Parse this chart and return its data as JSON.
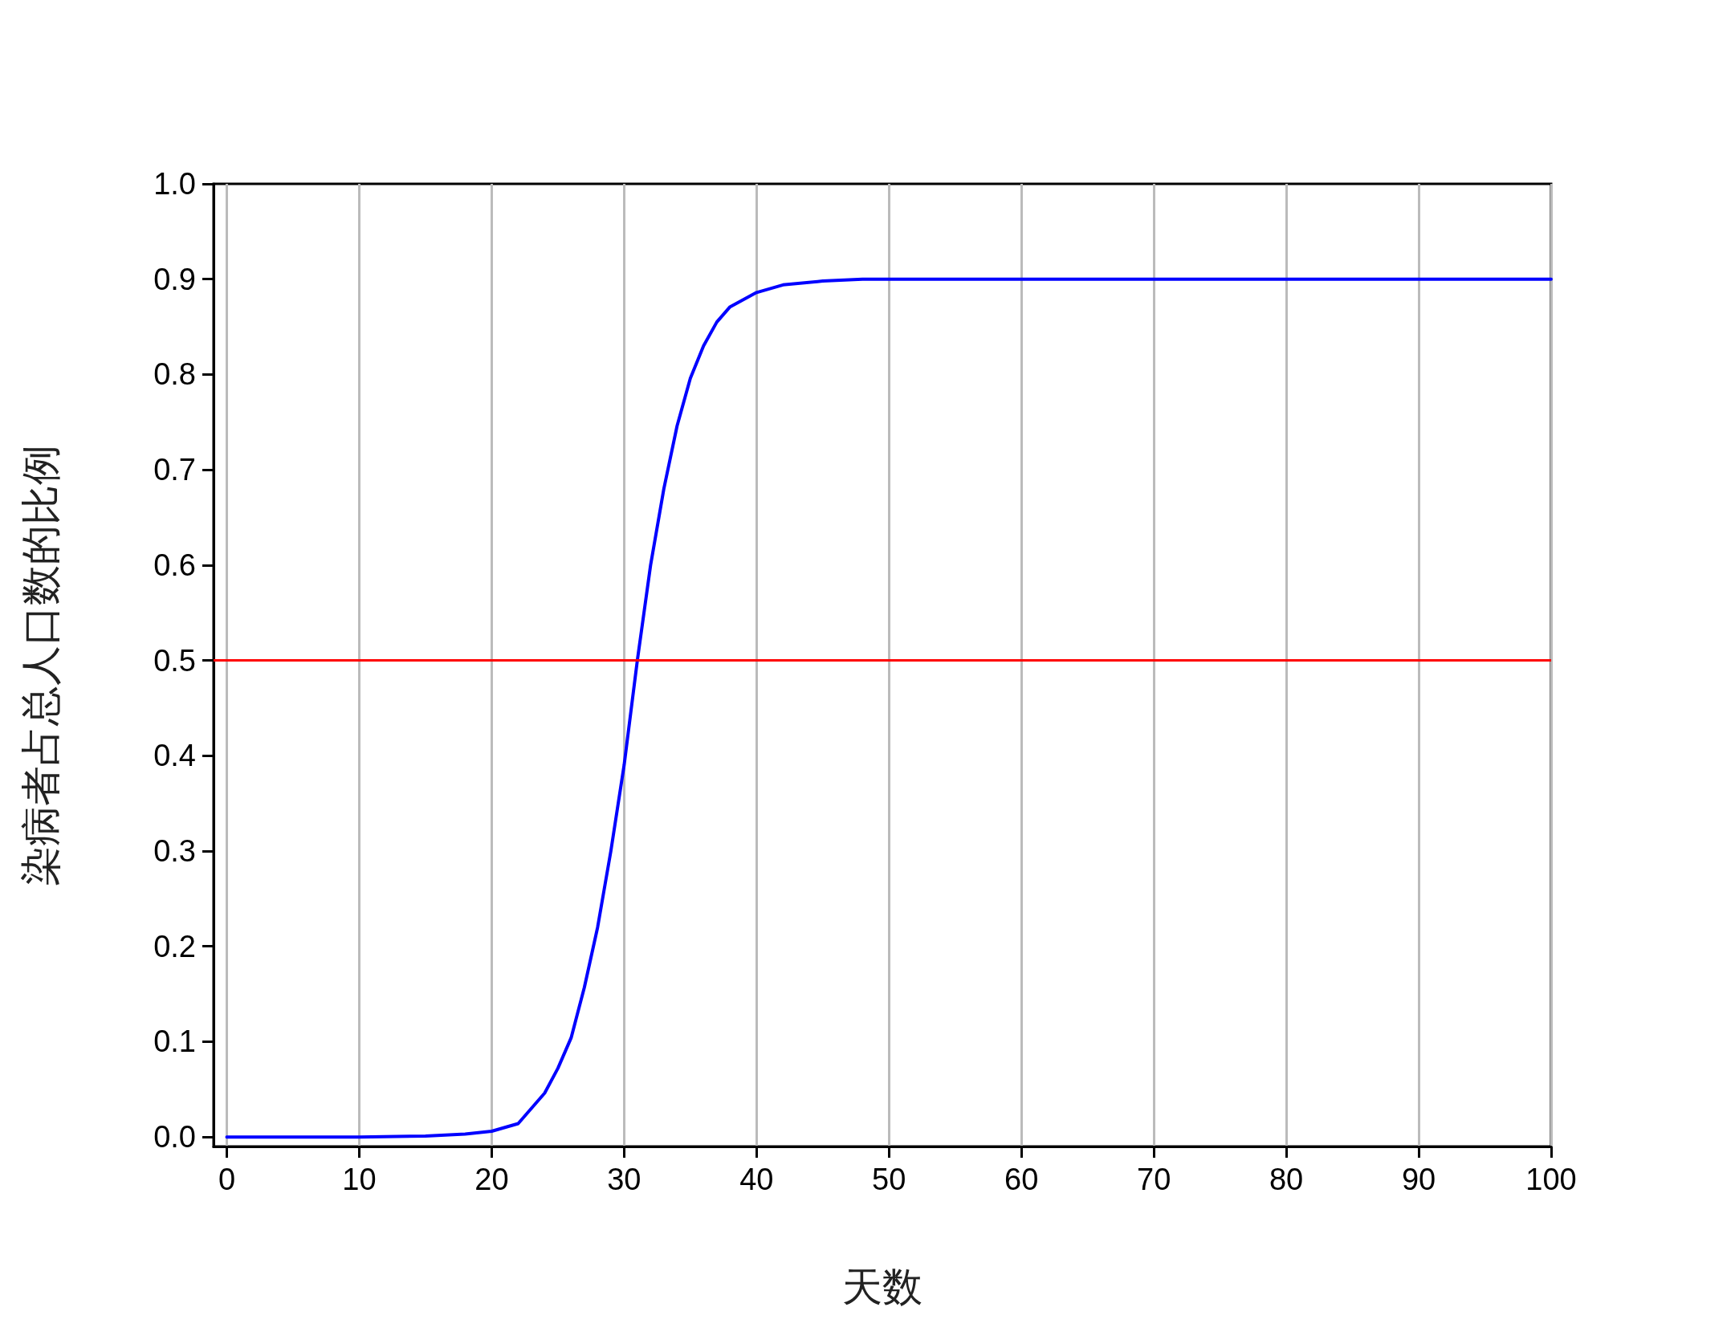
{
  "chart_data": {
    "type": "line",
    "xlabel": "天数",
    "ylabel": "染病者占总人口数的比例",
    "series": [
      {
        "color": "#0000ff",
        "x": [
          0,
          5,
          10,
          15,
          18,
          20,
          22,
          24,
          25,
          26,
          27,
          28,
          29,
          30,
          31,
          32,
          33,
          34,
          35,
          36,
          37,
          38,
          40,
          42,
          45,
          48,
          60,
          80,
          100
        ],
        "values": [
          0,
          0,
          0,
          0.001,
          0.003,
          0.006,
          0.014,
          0.046,
          0.072,
          0.104,
          0.157,
          0.22,
          0.3,
          0.39,
          0.5,
          0.6,
          0.68,
          0.746,
          0.796,
          0.83,
          0.855,
          0.871,
          0.886,
          0.894,
          0.898,
          0.9,
          0.9,
          0.9,
          0.9
        ]
      }
    ],
    "xlim": [
      -1,
      100
    ],
    "xticks": [
      0,
      10,
      20,
      30,
      40,
      50,
      60,
      70,
      80,
      90,
      100
    ],
    "ylim": [
      -0.01,
      1
    ],
    "yticks": [
      {
        "value": 0,
        "label": "0.0"
      },
      0.1,
      0.2,
      0.3,
      0.4,
      0.5,
      0.6,
      0.7,
      0.8,
      0.9,
      {
        "value": 1,
        "label": "1.0"
      }
    ],
    "ref_lines": [
      {
        "axis": "y",
        "value": 0.5,
        "color": "#ff0000"
      }
    ],
    "grid": "x",
    "marker": "none",
    "line_style": "solid"
  }
}
